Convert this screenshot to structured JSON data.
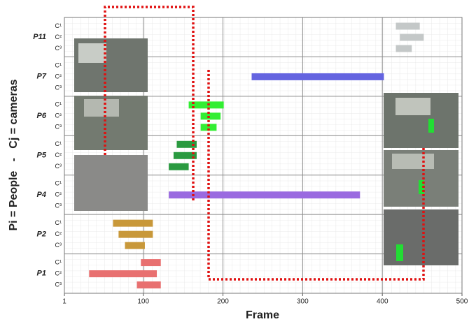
{
  "chart_data": {
    "type": "range_bar",
    "x_label": "Frame",
    "y_label": "Pi = People   -   Cj = cameras",
    "xlim": [
      1,
      500
    ],
    "xticks": [
      1,
      100,
      200,
      300,
      400,
      500
    ],
    "grid": true,
    "groups": [
      {
        "name": "P11",
        "color": "#c4c8c8",
        "rows": [
          {
            "label": "C¹",
            "start": 417,
            "end": 447
          },
          {
            "label": "C²",
            "start": 422,
            "end": 452
          },
          {
            "label": "C³",
            "start": 417,
            "end": 437
          }
        ]
      },
      {
        "name": "P7",
        "color": "#6464e0",
        "rows": [
          {
            "label": "C¹",
            "start": null,
            "end": null
          },
          {
            "label": "C²",
            "start": 236,
            "end": 402
          },
          {
            "label": "C³",
            "start": null,
            "end": null
          }
        ]
      },
      {
        "name": "P6",
        "color": "#33ee33",
        "rows": [
          {
            "label": "C¹",
            "start": 157,
            "end": 201
          },
          {
            "label": "C²",
            "start": 172,
            "end": 197
          },
          {
            "label": "C³",
            "start": 172,
            "end": 192
          }
        ]
      },
      {
        "name": "P5",
        "color": "#2a9a40",
        "rows": [
          {
            "label": "C¹",
            "start": 142,
            "end": 167
          },
          {
            "label": "C²",
            "start": 138,
            "end": 167
          },
          {
            "label": "C³",
            "start": 132,
            "end": 157
          }
        ]
      },
      {
        "name": "P4",
        "color": "#9a6ae0",
        "rows": [
          {
            "label": "C¹",
            "start": null,
            "end": null
          },
          {
            "label": "C²",
            "start": 132,
            "end": 372
          },
          {
            "label": "C³",
            "start": null,
            "end": null
          }
        ]
      },
      {
        "name": "P2",
        "color": "#c8983a",
        "rows": [
          {
            "label": "C¹",
            "start": 62,
            "end": 112
          },
          {
            "label": "C²",
            "start": 69,
            "end": 112
          },
          {
            "label": "C³",
            "start": 77,
            "end": 102
          }
        ]
      },
      {
        "name": "P1",
        "color": "#e87070",
        "rows": [
          {
            "label": "C¹",
            "start": 97,
            "end": 122
          },
          {
            "label": "C²",
            "start": 32,
            "end": 117
          },
          {
            "label": "C³",
            "start": 92,
            "end": 122
          }
        ]
      }
    ]
  }
}
